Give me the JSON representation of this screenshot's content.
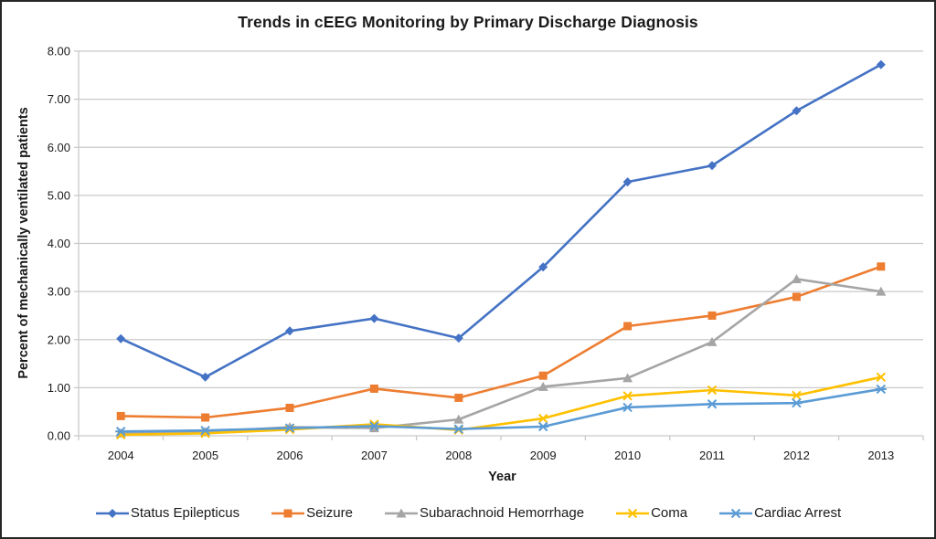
{
  "chart_data": {
    "type": "line",
    "title": "Trends in cEEG Monitoring by Primary Discharge Diagnosis",
    "xlabel": "Year",
    "ylabel": "Percent of mechanically ventilated patients",
    "ylim": [
      0,
      8
    ],
    "ytick_step": 1,
    "ytick_labels": [
      "0.00",
      "1.00",
      "2.00",
      "3.00",
      "4.00",
      "5.00",
      "6.00",
      "7.00",
      "8.00"
    ],
    "categories": [
      "2004",
      "2005",
      "2006",
      "2007",
      "2008",
      "2009",
      "2010",
      "2011",
      "2012",
      "2013"
    ],
    "grid": "horizontal",
    "gridline_color": "#c9c9c9",
    "legend_position": "bottom",
    "series": [
      {
        "name": "Status Epilepticus",
        "color": "#4472C4",
        "marker": "diamond",
        "values": [
          2.02,
          1.22,
          2.18,
          2.44,
          2.03,
          3.51,
          5.28,
          5.62,
          6.76,
          7.72
        ]
      },
      {
        "name": "Seizure",
        "color": "#ED7D31",
        "marker": "square",
        "values": [
          0.41,
          0.38,
          0.58,
          0.98,
          0.79,
          1.25,
          2.28,
          2.5,
          2.89,
          3.52
        ]
      },
      {
        "name": "Subarachnoid Hemorrhage",
        "color": "#A5A5A5",
        "marker": "triangle",
        "values": [
          0.05,
          0.08,
          0.18,
          0.16,
          0.34,
          1.02,
          1.2,
          1.95,
          3.26,
          3.0
        ]
      },
      {
        "name": "Coma",
        "color": "#FFC000",
        "marker": "x",
        "values": [
          0.02,
          0.05,
          0.13,
          0.24,
          0.12,
          0.36,
          0.83,
          0.95,
          0.84,
          1.22
        ]
      },
      {
        "name": "Cardiac Arrest",
        "color": "#5B9BD5",
        "marker": "star",
        "values": [
          0.09,
          0.11,
          0.16,
          0.2,
          0.14,
          0.19,
          0.59,
          0.66,
          0.68,
          0.97
        ]
      }
    ]
  }
}
